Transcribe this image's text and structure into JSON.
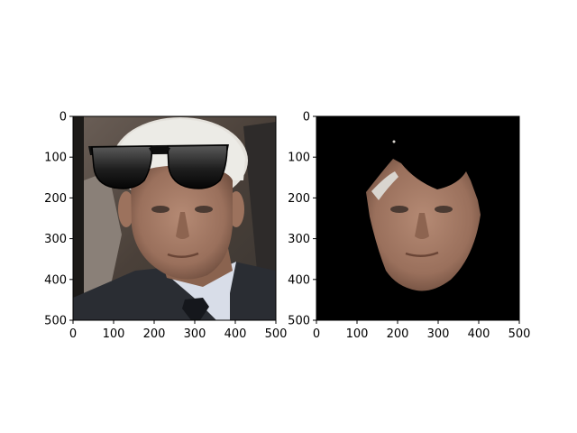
{
  "chart_data": [
    {
      "type": "image",
      "title": "",
      "xlabel": "",
      "ylabel": "",
      "xlim": [
        0,
        500
      ],
      "ylim": [
        500,
        0
      ],
      "xticks": [
        0,
        100,
        200,
        300,
        400,
        500
      ],
      "yticks": [
        0,
        100,
        200,
        300,
        400,
        500
      ],
      "content": "photo of man's face with black sunglasses overlay",
      "background_color": "#5a4f45"
    },
    {
      "type": "image",
      "title": "",
      "xlabel": "",
      "ylabel": "",
      "xlim": [
        0,
        500
      ],
      "ylim": [
        500,
        0
      ],
      "xticks": [
        0,
        100,
        200,
        300,
        400,
        500
      ],
      "yticks": [
        0,
        100,
        200,
        300,
        400,
        500
      ],
      "content": "masked face region on black background",
      "background_color": "#000000"
    }
  ],
  "colors": {
    "skin": "#b08470",
    "skin_shadow": "#7d5a48",
    "hair": "#e8e6e0",
    "suit": "#2a2d33",
    "shirt": "#d8dde8",
    "tie": "#15171c",
    "glasses": "#1a1a1a",
    "mask_bg": "#000000"
  }
}
